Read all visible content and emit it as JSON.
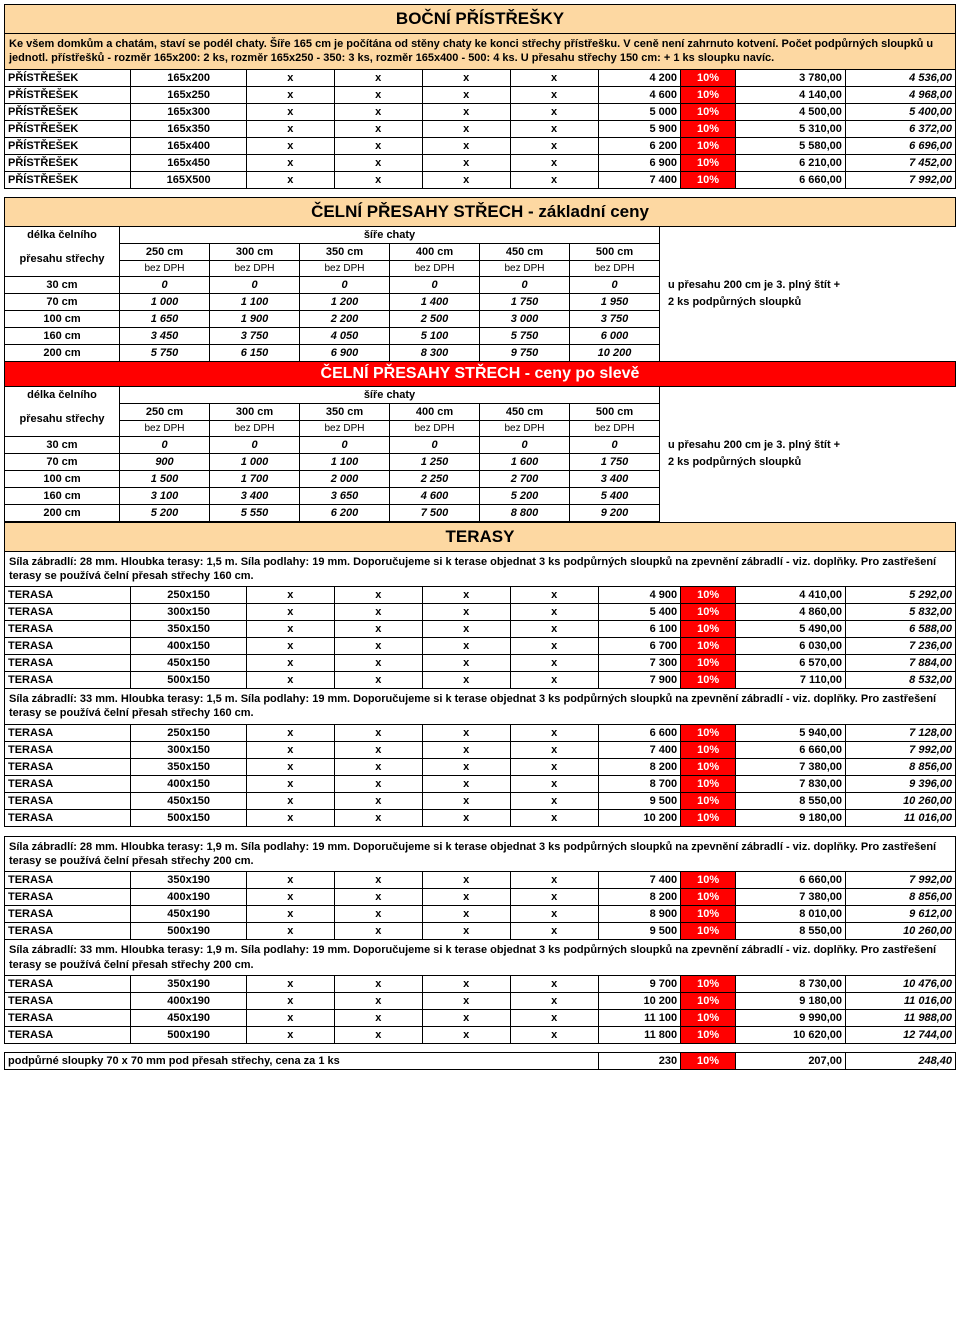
{
  "section1": {
    "title": "BOČNÍ PŘÍSTŘEŠKY",
    "note": "Ke všem domkům a chatám, staví se podél chaty. Šíře 165 cm je počítána od stěny chaty ke konci střechy přístřešku. V ceně není zahrnuto kotvení. Počet podpůrných sloupků u jednotl. přístřešků - rozměr 165x200: 2 ks, rozměr 165x250 - 350: 3 ks, rozměr 165x400 - 500: 4 ks. U přesahu střechy 150 cm: + 1 ks sloupku navíc.",
    "rows": [
      {
        "n": "PŘÍSTŘEŠEK",
        "s": "165x200",
        "p1": "4 200",
        "d": "10%",
        "p2": "3 780,00",
        "p3": "4 536,00"
      },
      {
        "n": "PŘÍSTŘEŠEK",
        "s": "165x250",
        "p1": "4 600",
        "d": "10%",
        "p2": "4 140,00",
        "p3": "4 968,00"
      },
      {
        "n": "PŘÍSTŘEŠEK",
        "s": "165x300",
        "p1": "5 000",
        "d": "10%",
        "p2": "4 500,00",
        "p3": "5 400,00"
      },
      {
        "n": "PŘÍSTŘEŠEK",
        "s": "165x350",
        "p1": "5 900",
        "d": "10%",
        "p2": "5 310,00",
        "p3": "6 372,00"
      },
      {
        "n": "PŘÍSTŘEŠEK",
        "s": "165x400",
        "p1": "6 200",
        "d": "10%",
        "p2": "5 580,00",
        "p3": "6 696,00"
      },
      {
        "n": "PŘÍSTŘEŠEK",
        "s": "165x450",
        "p1": "6 900",
        "d": "10%",
        "p2": "6 210,00",
        "p3": "7 452,00"
      },
      {
        "n": "PŘÍSTŘEŠEK",
        "s": "165X500",
        "p1": "7 400",
        "d": "10%",
        "p2": "6 660,00",
        "p3": "7 992,00"
      }
    ]
  },
  "section2": {
    "title_basic": "ČELNÍ PŘESAHY STŘECH - základní ceny",
    "title_sale": "ČELNÍ PŘESAHY STŘECH - ceny po slevě",
    "col_label": "délka čelního",
    "col_label2": "přesahu střechy",
    "width_label": "šíře chaty",
    "widths": [
      "250 cm",
      "300 cm",
      "350 cm",
      "400 cm",
      "450 cm",
      "500 cm"
    ],
    "bez": "bez DPH",
    "side_note1": "u přesahu 200 cm je 3. plný štít +",
    "side_note2": "2 ks podpůrných sloupků",
    "lengths": [
      "30 cm",
      "70 cm",
      "100 cm",
      "160 cm",
      "200 cm"
    ],
    "basic": [
      [
        "0",
        "0",
        "0",
        "0",
        "0",
        "0"
      ],
      [
        "1 000",
        "1 100",
        "1 200",
        "1 400",
        "1 750",
        "1 950"
      ],
      [
        "1 650",
        "1 900",
        "2 200",
        "2 500",
        "3 000",
        "3 750"
      ],
      [
        "3 450",
        "3 750",
        "4 050",
        "5 100",
        "5 750",
        "6 000"
      ],
      [
        "5 750",
        "6 150",
        "6 900",
        "8 300",
        "9 750",
        "10 200"
      ]
    ],
    "sale": [
      [
        "0",
        "0",
        "0",
        "0",
        "0",
        "0"
      ],
      [
        "900",
        "1 000",
        "1 100",
        "1 250",
        "1 600",
        "1 750"
      ],
      [
        "1 500",
        "1 700",
        "2 000",
        "2 250",
        "2 700",
        "3 400"
      ],
      [
        "3 100",
        "3 400",
        "3 650",
        "4 600",
        "5 200",
        "5 400"
      ],
      [
        "5 200",
        "5 550",
        "6 200",
        "7 500",
        "8 800",
        "9 200"
      ]
    ]
  },
  "section3": {
    "title": "TERASY",
    "groups": [
      {
        "note": "Síla zábradlí: 28 mm. Hloubka terasy: 1,5 m. Síla podlahy: 19 mm. Doporučujeme si k terase objednat 3 ks podpůrných sloupků na zpevnění zábradlí - viz. doplňky. Pro zastřešení terasy se používá čelní přesah střechy 160 cm.",
        "rows": [
          {
            "n": "TERASA",
            "s": "250x150",
            "p1": "4 900",
            "d": "10%",
            "p2": "4 410,00",
            "p3": "5 292,00"
          },
          {
            "n": "TERASA",
            "s": "300x150",
            "p1": "5 400",
            "d": "10%",
            "p2": "4 860,00",
            "p3": "5 832,00"
          },
          {
            "n": "TERASA",
            "s": "350x150",
            "p1": "6 100",
            "d": "10%",
            "p2": "5 490,00",
            "p3": "6 588,00"
          },
          {
            "n": "TERASA",
            "s": "400x150",
            "p1": "6 700",
            "d": "10%",
            "p2": "6 030,00",
            "p3": "7 236,00"
          },
          {
            "n": "TERASA",
            "s": "450x150",
            "p1": "7 300",
            "d": "10%",
            "p2": "6 570,00",
            "p3": "7 884,00"
          },
          {
            "n": "TERASA",
            "s": "500x150",
            "p1": "7 900",
            "d": "10%",
            "p2": "7 110,00",
            "p3": "8 532,00"
          }
        ]
      },
      {
        "note": "Síla zábradlí: 33 mm. Hloubka terasy: 1,5 m. Síla podlahy: 19 mm. Doporučujeme si k terase objednat 3 ks podpůrných sloupků na zpevnění zábradlí - viz. doplňky. Pro zastřešení terasy se používá čelní přesah střechy 160 cm.",
        "rows": [
          {
            "n": "TERASA",
            "s": "250x150",
            "p1": "6 600",
            "d": "10%",
            "p2": "5 940,00",
            "p3": "7 128,00"
          },
          {
            "n": "TERASA",
            "s": "300x150",
            "p1": "7 400",
            "d": "10%",
            "p2": "6 660,00",
            "p3": "7 992,00"
          },
          {
            "n": "TERASA",
            "s": "350x150",
            "p1": "8 200",
            "d": "10%",
            "p2": "7 380,00",
            "p3": "8 856,00"
          },
          {
            "n": "TERASA",
            "s": "400x150",
            "p1": "8 700",
            "d": "10%",
            "p2": "7 830,00",
            "p3": "9 396,00"
          },
          {
            "n": "TERASA",
            "s": "450x150",
            "p1": "9 500",
            "d": "10%",
            "p2": "8 550,00",
            "p3": "10 260,00"
          },
          {
            "n": "TERASA",
            "s": "500x150",
            "p1": "10 200",
            "d": "10%",
            "p2": "9 180,00",
            "p3": "11 016,00"
          }
        ]
      },
      {
        "gap": true,
        "note": "Síla zábradlí: 28 mm. Hloubka terasy: 1,9 m. Síla podlahy: 19 mm. Doporučujeme si k terase objednat 3 ks podpůrných sloupků na zpevnění zábradlí - viz. doplňky. Pro zastřešení terasy se používá čelní přesah střechy 200 cm.",
        "rows": [
          {
            "n": "TERASA",
            "s": "350x190",
            "p1": "7 400",
            "d": "10%",
            "p2": "6 660,00",
            "p3": "7 992,00"
          },
          {
            "n": "TERASA",
            "s": "400x190",
            "p1": "8 200",
            "d": "10%",
            "p2": "7 380,00",
            "p3": "8 856,00"
          },
          {
            "n": "TERASA",
            "s": "450x190",
            "p1": "8 900",
            "d": "10%",
            "p2": "8 010,00",
            "p3": "9 612,00"
          },
          {
            "n": "TERASA",
            "s": "500x190",
            "p1": "9 500",
            "d": "10%",
            "p2": "8 550,00",
            "p3": "10 260,00"
          }
        ]
      },
      {
        "note": "Síla zábradlí: 33 mm. Hloubka terasy: 1,9 m. Síla podlahy: 19 mm. Doporučujeme si k terase objednat 3 ks podpůrných sloupků na zpevnění zábradlí - viz. doplňky. Pro zastřešení terasy se používá čelní přesah střechy 200 cm.",
        "rows": [
          {
            "n": "TERASA",
            "s": "350x190",
            "p1": "9 700",
            "d": "10%",
            "p2": "8 730,00",
            "p3": "10 476,00"
          },
          {
            "n": "TERASA",
            "s": "400x190",
            "p1": "10 200",
            "d": "10%",
            "p2": "9 180,00",
            "p3": "11 016,00"
          },
          {
            "n": "TERASA",
            "s": "450x190",
            "p1": "11 100",
            "d": "10%",
            "p2": "9 990,00",
            "p3": "11 988,00"
          },
          {
            "n": "TERASA",
            "s": "500x190",
            "p1": "11 800",
            "d": "10%",
            "p2": "10 620,00",
            "p3": "12 744,00"
          }
        ]
      }
    ]
  },
  "footer": {
    "label": "podpůrné sloupky 70 x 70 mm pod přesah střechy, cena za 1 ks",
    "p1": "230",
    "d": "10%",
    "p2": "207,00",
    "p3": "248,40"
  },
  "colors": {
    "orange": "#fdd8a2",
    "red": "#ff0000",
    "text": "#000000"
  }
}
